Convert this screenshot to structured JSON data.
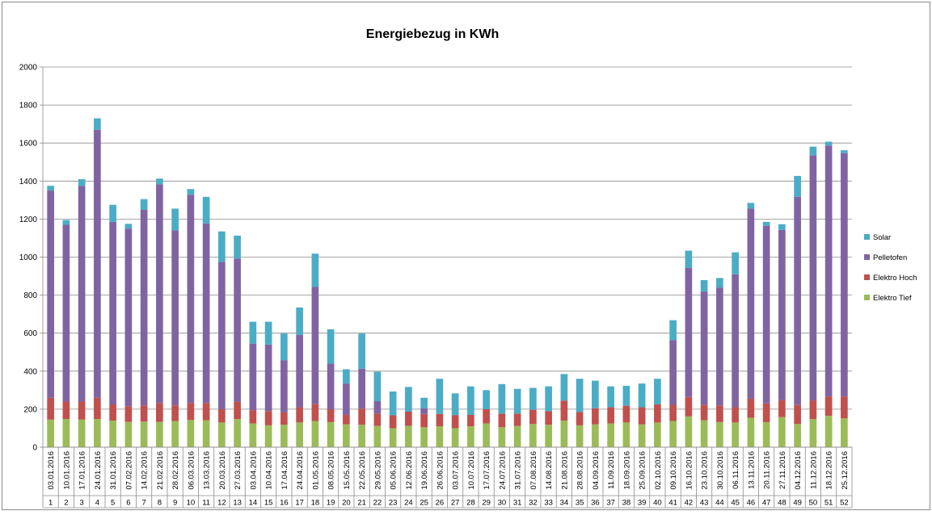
{
  "chart_data": {
    "type": "bar",
    "stacked": true,
    "title": "Energiebezug in KWh",
    "xlabel": "",
    "ylabel": "",
    "ylim": [
      0,
      2000
    ],
    "yticks": [
      "0",
      "200",
      "400",
      "600",
      "800",
      "1000",
      "1200",
      "1400",
      "1600",
      "1800",
      "2000"
    ],
    "grid": true,
    "legend_position": "right",
    "categories": [
      "03.01.2016",
      "10.01.2016",
      "17.01.2016",
      "24.01.2016",
      "31.01.2016",
      "07.02.2016",
      "14.02.2016",
      "21.02.2016",
      "28.02.2016",
      "06.03.2016",
      "13.03.2016",
      "20.03.2016",
      "27.03.2016",
      "03.04.2016",
      "10.04.2016",
      "17.04.2016",
      "24.04.2016",
      "01.05.2016",
      "08.05.2016",
      "15.05.2016",
      "22.05.2016",
      "29.05.2016",
      "05.06.2016",
      "12.06.2016",
      "19.06.2016",
      "26.06.2016",
      "03.07.2016",
      "10.07.2016",
      "17.07.2016",
      "24.07.2016",
      "31.07.2016",
      "07.08.2016",
      "14.08.2016",
      "21.08.2016",
      "28.08.2016",
      "04.09.2016",
      "11.09.2016",
      "18.09.2016",
      "25.09.2016",
      "02.10.2016",
      "09.10.2016",
      "16.10.2016",
      "23.10.2016",
      "30.10.2016",
      "06.11.2016",
      "13.11.2016",
      "20.11.2016",
      "27.11.2016",
      "04.12.2016",
      "11.12.2016",
      "18.12.2016",
      "25.12.2016"
    ],
    "week_numbers": [
      "1",
      "2",
      "3",
      "4",
      "5",
      "6",
      "7",
      "8",
      "9",
      "10",
      "11",
      "12",
      "13",
      "14",
      "15",
      "16",
      "17",
      "18",
      "19",
      "20",
      "21",
      "22",
      "23",
      "24",
      "25",
      "26",
      "27",
      "28",
      "29",
      "30",
      "31",
      "32",
      "33",
      "34",
      "35",
      "36",
      "37",
      "38",
      "39",
      "40",
      "41",
      "42",
      "43",
      "44",
      "45",
      "46",
      "47",
      "48",
      "49",
      "50",
      "51",
      "52"
    ],
    "series": [
      {
        "name": "Elektro Tief",
        "color": "#9bbb59",
        "values": [
          145,
          148,
          145,
          148,
          140,
          133,
          135,
          133,
          138,
          143,
          142,
          130,
          148,
          125,
          115,
          118,
          130,
          138,
          132,
          120,
          118,
          112,
          100,
          112,
          105,
          110,
          100,
          110,
          125,
          105,
          112,
          122,
          118,
          140,
          115,
          120,
          125,
          130,
          120,
          130,
          138,
          162,
          142,
          132,
          130,
          155,
          132,
          158,
          122,
          148,
          165,
          152
        ]
      },
      {
        "name": "Elektro Hoch",
        "color": "#c0504d",
        "values": [
          115,
          92,
          95,
          112,
          85,
          82,
          85,
          100,
          82,
          90,
          90,
          70,
          90,
          70,
          75,
          65,
          80,
          90,
          68,
          50,
          85,
          65,
          68,
          75,
          70,
          65,
          68,
          60,
          75,
          72,
          65,
          75,
          72,
          105,
          70,
          85,
          85,
          88,
          90,
          95,
          85,
          102,
          82,
          88,
          80,
          100,
          98,
          90,
          100,
          98,
          102,
          115
        ]
      },
      {
        "name": "Pelletofen",
        "color": "#8064a2",
        "values": [
          1090,
          930,
          1135,
          1410,
          960,
          935,
          1030,
          1150,
          920,
          1095,
          945,
          775,
          755,
          350,
          350,
          275,
          380,
          615,
          240,
          165,
          210,
          65,
          0,
          0,
          30,
          0,
          0,
          0,
          0,
          0,
          0,
          0,
          0,
          0,
          0,
          0,
          0,
          0,
          0,
          0,
          340,
          680,
          595,
          620,
          700,
          1000,
          935,
          895,
          1095,
          1290,
          1320,
          1280
        ]
      },
      {
        "name": "Solar",
        "color": "#4bacc6",
        "values": [
          25,
          25,
          35,
          60,
          90,
          25,
          55,
          30,
          115,
          30,
          140,
          160,
          120,
          115,
          120,
          140,
          145,
          175,
          180,
          75,
          185,
          155,
          125,
          130,
          55,
          185,
          115,
          150,
          100,
          155,
          130,
          115,
          130,
          140,
          175,
          145,
          110,
          105,
          125,
          135,
          105,
          90,
          60,
          50,
          115,
          30,
          20,
          30,
          110,
          45,
          20,
          15
        ]
      }
    ]
  }
}
